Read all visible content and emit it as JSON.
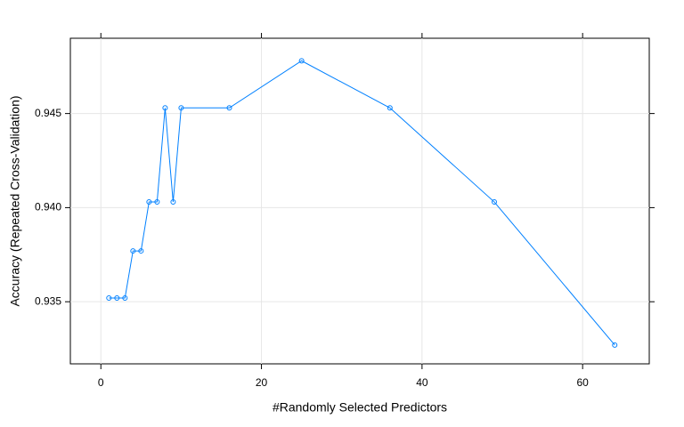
{
  "chart_data": {
    "type": "line",
    "x_label": "#Randomly Selected Predictors",
    "y_label": "Accuracy (Repeated Cross-Validation)",
    "x": [
      1,
      2,
      3,
      4,
      5,
      6,
      7,
      8,
      9,
      10,
      16,
      25,
      36,
      49,
      64
    ],
    "series": [
      {
        "color": "#0080ff",
        "values": [
          0.9352,
          0.9352,
          0.9352,
          0.9377,
          0.9377,
          0.9403,
          0.9403,
          0.9453,
          0.9403,
          0.9453,
          0.9453,
          0.9478,
          0.9453,
          0.9403,
          0.9327
        ]
      }
    ],
    "xlim": [
      -3.8,
      68.3
    ],
    "xticks": [
      0,
      20,
      40,
      60
    ],
    "ylim": [
      0.9317,
      0.949
    ],
    "yticks": [
      0.935,
      {
        "value": 0.94,
        "label": "0.940"
      },
      0.945
    ],
    "grid": true
  }
}
